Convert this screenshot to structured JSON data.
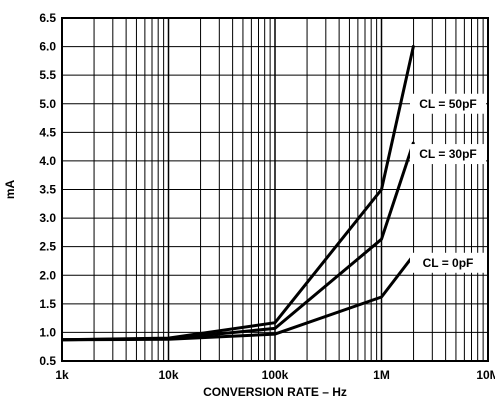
{
  "chart_data": {
    "type": "line",
    "title": "",
    "xlabel": "CONVERSION RATE – Hz",
    "ylabel": "mA",
    "x_scale": "log",
    "xlim": [
      1000,
      10000000
    ],
    "ylim": [
      0.5,
      6.5
    ],
    "x_ticks": [
      {
        "value": 1000,
        "label": "1k"
      },
      {
        "value": 10000,
        "label": "10k"
      },
      {
        "value": 100000,
        "label": "100k"
      },
      {
        "value": 1000000,
        "label": "1M"
      },
      {
        "value": 10000000,
        "label": "10M"
      }
    ],
    "y_ticks": [
      {
        "value": 0.5,
        "label": "0.5"
      },
      {
        "value": 1.0,
        "label": "1.0"
      },
      {
        "value": 1.5,
        "label": "1.5"
      },
      {
        "value": 2.0,
        "label": "2.0"
      },
      {
        "value": 2.5,
        "label": "2.5"
      },
      {
        "value": 3.0,
        "label": "3.0"
      },
      {
        "value": 3.5,
        "label": "3.5"
      },
      {
        "value": 4.0,
        "label": "4.0"
      },
      {
        "value": 4.5,
        "label": "4.5"
      },
      {
        "value": 5.0,
        "label": "5.0"
      },
      {
        "value": 5.5,
        "label": "5.5"
      },
      {
        "value": 6.0,
        "label": "6.0"
      },
      {
        "value": 6.5,
        "label": "6.5"
      }
    ],
    "grid": true,
    "line_color": "#000000",
    "series": [
      {
        "name": "CL = 50pF",
        "x": [
          1000,
          10000,
          100000,
          1000000,
          2000000
        ],
        "y": [
          0.87,
          0.9,
          1.17,
          3.5,
          6.02
        ]
      },
      {
        "name": "CL = 30pF",
        "x": [
          1000,
          10000,
          100000,
          1000000,
          2000000
        ],
        "y": [
          0.87,
          0.89,
          1.07,
          2.63,
          4.33
        ]
      },
      {
        "name": "CL = 0pF",
        "x": [
          1000,
          10000,
          100000,
          1000000,
          2000000
        ],
        "y": [
          0.87,
          0.88,
          0.97,
          1.62,
          2.35
        ]
      }
    ]
  }
}
